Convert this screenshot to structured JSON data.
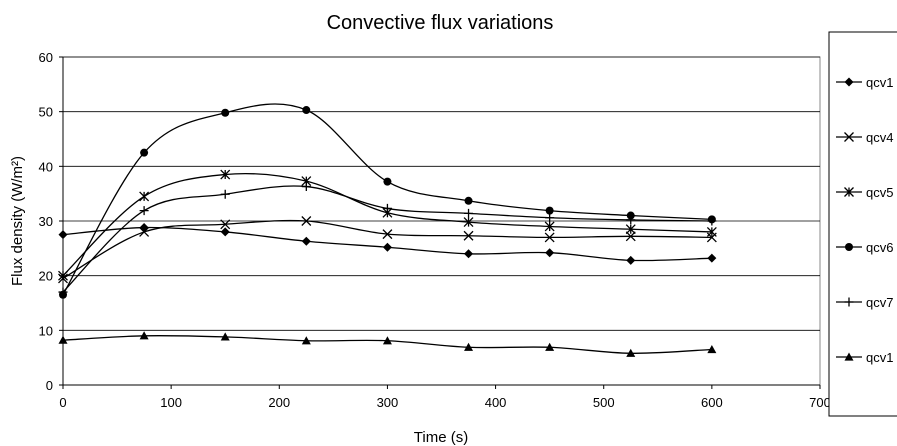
{
  "chart_data": {
    "type": "line",
    "title": "Convective flux variations",
    "xlabel": "Time (s)",
    "ylabel": "Flux density (W/m²)",
    "xlim": [
      0,
      700
    ],
    "ylim": [
      0,
      60
    ],
    "x_ticks": [
      0,
      100,
      200,
      300,
      400,
      500,
      600,
      700
    ],
    "y_ticks": [
      0,
      10,
      20,
      30,
      40,
      50,
      60
    ],
    "grid": "horizontal",
    "legend_position": "right",
    "x": [
      0,
      75,
      150,
      225,
      300,
      375,
      450,
      525,
      600
    ],
    "series": [
      {
        "name": "qcv1",
        "marker": "diamond",
        "values": [
          27.5,
          28.8,
          28.0,
          26.3,
          25.2,
          24.0,
          24.2,
          22.8,
          23.2
        ]
      },
      {
        "name": "qcv4",
        "marker": "x",
        "values": [
          19.5,
          28.0,
          29.4,
          30.0,
          27.6,
          27.3,
          27.0,
          27.2,
          27.0
        ]
      },
      {
        "name": "qcv5",
        "marker": "asterisk",
        "values": [
          20.0,
          34.5,
          38.5,
          37.3,
          31.5,
          29.8,
          29.0,
          28.5,
          28.0
        ]
      },
      {
        "name": "qcv6",
        "marker": "circle",
        "values": [
          16.5,
          42.5,
          49.8,
          50.3,
          37.2,
          33.7,
          31.9,
          31.0,
          30.3
        ]
      },
      {
        "name": "qcv7",
        "marker": "plus",
        "values": [
          17.0,
          31.9,
          34.9,
          36.3,
          32.3,
          31.4,
          30.6,
          30.2,
          30.0
        ]
      },
      {
        "name": "qcv1",
        "marker": "triangle",
        "values": [
          8.2,
          9.0,
          8.8,
          8.1,
          8.1,
          6.9,
          6.9,
          5.8,
          6.5
        ]
      }
    ]
  }
}
